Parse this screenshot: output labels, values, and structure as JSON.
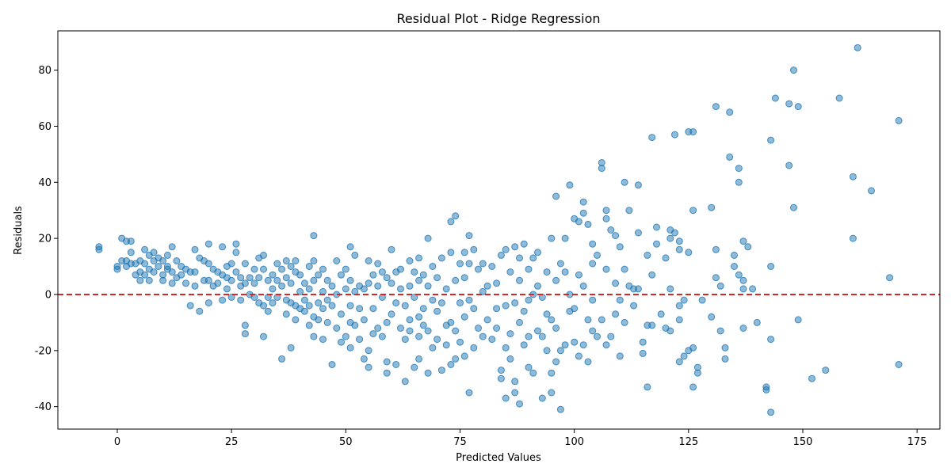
{
  "chart_data": {
    "type": "scatter",
    "title": "Residual Plot - Ridge Regression",
    "xlabel": "Predicted Values",
    "ylabel": "Residuals",
    "xlim": [
      -13,
      180
    ],
    "ylim": [
      -48,
      94
    ],
    "xticks": [
      0,
      25,
      50,
      75,
      100,
      125,
      150,
      175
    ],
    "yticks": [
      -40,
      -20,
      0,
      20,
      40,
      60,
      80
    ],
    "grid": false,
    "point_color": "#1f77b4",
    "point_alpha": 0.5,
    "reference_line": {
      "y": 0,
      "color": "#d62728",
      "style": "dashed"
    },
    "points": [
      [
        -4,
        17
      ],
      [
        -4,
        16
      ],
      [
        0,
        10
      ],
      [
        0,
        9
      ],
      [
        1,
        20
      ],
      [
        1,
        12
      ],
      [
        2,
        19
      ],
      [
        2,
        12
      ],
      [
        2,
        10
      ],
      [
        3,
        19
      ],
      [
        3,
        15
      ],
      [
        3,
        11
      ],
      [
        4,
        11
      ],
      [
        4,
        7
      ],
      [
        5,
        12
      ],
      [
        5,
        8
      ],
      [
        5,
        5
      ],
      [
        6,
        16
      ],
      [
        6,
        11
      ],
      [
        6,
        7
      ],
      [
        7,
        14
      ],
      [
        7,
        9
      ],
      [
        7,
        5
      ],
      [
        8,
        15
      ],
      [
        8,
        12
      ],
      [
        8,
        8
      ],
      [
        9,
        13
      ],
      [
        9,
        10
      ],
      [
        10,
        12
      ],
      [
        10,
        7
      ],
      [
        10,
        5
      ],
      [
        11,
        14
      ],
      [
        11,
        10
      ],
      [
        11,
        9
      ],
      [
        12,
        17
      ],
      [
        12,
        8
      ],
      [
        12,
        4
      ],
      [
        13,
        12
      ],
      [
        13,
        6
      ],
      [
        14,
        10
      ],
      [
        14,
        7
      ],
      [
        15,
        9
      ],
      [
        15,
        4
      ],
      [
        16,
        8
      ],
      [
        16,
        -4
      ],
      [
        17,
        16
      ],
      [
        17,
        8
      ],
      [
        17,
        3
      ],
      [
        18,
        13
      ],
      [
        18,
        -6
      ],
      [
        19,
        12
      ],
      [
        19,
        5
      ],
      [
        20,
        18
      ],
      [
        20,
        11
      ],
      [
        20,
        5
      ],
      [
        20,
        -3
      ],
      [
        21,
        9
      ],
      [
        21,
        3
      ],
      [
        22,
        8
      ],
      [
        22,
        4
      ],
      [
        23,
        17
      ],
      [
        23,
        7
      ],
      [
        23,
        -2
      ],
      [
        24,
        10
      ],
      [
        24,
        6
      ],
      [
        24,
        2
      ],
      [
        25,
        11
      ],
      [
        25,
        5
      ],
      [
        25,
        -1
      ],
      [
        26,
        18
      ],
      [
        26,
        15
      ],
      [
        26,
        8
      ],
      [
        27,
        6
      ],
      [
        27,
        3
      ],
      [
        27,
        -2
      ],
      [
        28,
        11
      ],
      [
        28,
        4
      ],
      [
        28,
        -11
      ],
      [
        28,
        -14
      ],
      [
        29,
        6
      ],
      [
        29,
        0
      ],
      [
        30,
        9
      ],
      [
        30,
        4
      ],
      [
        30,
        -1
      ],
      [
        31,
        13
      ],
      [
        31,
        6
      ],
      [
        31,
        -3
      ],
      [
        32,
        14
      ],
      [
        32,
        9
      ],
      [
        32,
        -4
      ],
      [
        32,
        -15
      ],
      [
        33,
        5
      ],
      [
        33,
        -1
      ],
      [
        33,
        -6
      ],
      [
        34,
        7
      ],
      [
        34,
        2
      ],
      [
        34,
        -3
      ],
      [
        35,
        11
      ],
      [
        35,
        5
      ],
      [
        35,
        -1
      ],
      [
        36,
        9
      ],
      [
        36,
        3
      ],
      [
        36,
        -23
      ],
      [
        37,
        12
      ],
      [
        37,
        6
      ],
      [
        37,
        -2
      ],
      [
        37,
        -7
      ],
      [
        38,
        10
      ],
      [
        38,
        4
      ],
      [
        38,
        -3
      ],
      [
        38,
        -19
      ],
      [
        39,
        12
      ],
      [
        39,
        8
      ],
      [
        39,
        -4
      ],
      [
        39,
        -9
      ],
      [
        40,
        7
      ],
      [
        40,
        1
      ],
      [
        40,
        -5
      ],
      [
        41,
        4
      ],
      [
        41,
        -2
      ],
      [
        41,
        -6
      ],
      [
        42,
        10
      ],
      [
        42,
        2
      ],
      [
        42,
        -4
      ],
      [
        42,
        -11
      ],
      [
        43,
        21
      ],
      [
        43,
        12
      ],
      [
        43,
        5
      ],
      [
        43,
        -8
      ],
      [
        43,
        -15
      ],
      [
        44,
        7
      ],
      [
        44,
        -3
      ],
      [
        44,
        -9
      ],
      [
        45,
        9
      ],
      [
        45,
        1
      ],
      [
        45,
        -5
      ],
      [
        45,
        -16
      ],
      [
        46,
        5
      ],
      [
        46,
        -2
      ],
      [
        46,
        -10
      ],
      [
        47,
        3
      ],
      [
        47,
        -4
      ],
      [
        47,
        -25
      ],
      [
        48,
        12
      ],
      [
        48,
        0
      ],
      [
        48,
        -12
      ],
      [
        49,
        7
      ],
      [
        49,
        -7
      ],
      [
        49,
        -17
      ],
      [
        50,
        9
      ],
      [
        50,
        2
      ],
      [
        50,
        -15
      ],
      [
        51,
        17
      ],
      [
        51,
        5
      ],
      [
        51,
        -4
      ],
      [
        51,
        -10
      ],
      [
        51,
        -19
      ],
      [
        52,
        14
      ],
      [
        52,
        1
      ],
      [
        52,
        -11
      ],
      [
        53,
        3
      ],
      [
        53,
        -5
      ],
      [
        53,
        -16
      ],
      [
        54,
        2
      ],
      [
        54,
        -9
      ],
      [
        54,
        -23
      ],
      [
        55,
        12
      ],
      [
        55,
        4
      ],
      [
        55,
        -20
      ],
      [
        55,
        -26
      ],
      [
        56,
        7
      ],
      [
        56,
        -5
      ],
      [
        56,
        -14
      ],
      [
        57,
        11
      ],
      [
        57,
        3
      ],
      [
        57,
        -12
      ],
      [
        58,
        8
      ],
      [
        58,
        -1
      ],
      [
        58,
        -15
      ],
      [
        59,
        6
      ],
      [
        59,
        -10
      ],
      [
        59,
        -24
      ],
      [
        59,
        -28
      ],
      [
        60,
        16
      ],
      [
        60,
        4
      ],
      [
        60,
        -7
      ],
      [
        61,
        8
      ],
      [
        61,
        -3
      ],
      [
        61,
        -25
      ],
      [
        62,
        9
      ],
      [
        62,
        2
      ],
      [
        62,
        -12
      ],
      [
        63,
        -4
      ],
      [
        63,
        -16
      ],
      [
        63,
        -31
      ],
      [
        64,
        12
      ],
      [
        64,
        3
      ],
      [
        64,
        -9
      ],
      [
        64,
        -13
      ],
      [
        65,
        8
      ],
      [
        65,
        -1
      ],
      [
        65,
        -26
      ],
      [
        66,
        13
      ],
      [
        66,
        5
      ],
      [
        66,
        -8
      ],
      [
        66,
        -15
      ],
      [
        66,
        -23
      ],
      [
        67,
        7
      ],
      [
        67,
        -5
      ],
      [
        67,
        -11
      ],
      [
        68,
        20
      ],
      [
        68,
        3
      ],
      [
        68,
        -13
      ],
      [
        68,
        -28
      ],
      [
        69,
        10
      ],
      [
        69,
        -2
      ],
      [
        69,
        -19
      ],
      [
        70,
        6
      ],
      [
        70,
        -6
      ],
      [
        70,
        -16
      ],
      [
        71,
        13
      ],
      [
        71,
        -3
      ],
      [
        71,
        -27
      ],
      [
        72,
        2
      ],
      [
        72,
        -11
      ],
      [
        72,
        -18
      ],
      [
        73,
        26
      ],
      [
        73,
        15
      ],
      [
        73,
        -10
      ],
      [
        73,
        -25
      ],
      [
        74,
        28
      ],
      [
        74,
        5
      ],
      [
        74,
        -13
      ],
      [
        74,
        -23
      ],
      [
        75,
        11
      ],
      [
        75,
        -3
      ],
      [
        75,
        -17
      ],
      [
        76,
        15
      ],
      [
        76,
        6
      ],
      [
        76,
        -8
      ],
      [
        76,
        -22
      ],
      [
        77,
        21
      ],
      [
        77,
        11
      ],
      [
        77,
        -2
      ],
      [
        77,
        -35
      ],
      [
        78,
        16
      ],
      [
        78,
        -5
      ],
      [
        78,
        -19
      ],
      [
        79,
        9
      ],
      [
        79,
        -12
      ],
      [
        80,
        11
      ],
      [
        80,
        1
      ],
      [
        80,
        -15
      ],
      [
        81,
        3
      ],
      [
        81,
        -9
      ],
      [
        82,
        10
      ],
      [
        82,
        -16
      ],
      [
        83,
        4
      ],
      [
        83,
        -5
      ],
      [
        83,
        -12
      ],
      [
        84,
        14
      ],
      [
        84,
        -27
      ],
      [
        84,
        -30
      ],
      [
        85,
        16
      ],
      [
        85,
        -4
      ],
      [
        85,
        -19
      ],
      [
        85,
        -37
      ],
      [
        86,
        8
      ],
      [
        86,
        -14
      ],
      [
        86,
        -23
      ],
      [
        87,
        17
      ],
      [
        87,
        -3
      ],
      [
        87,
        -31
      ],
      [
        87,
        -35
      ],
      [
        88,
        13
      ],
      [
        88,
        5
      ],
      [
        88,
        -10
      ],
      [
        88,
        -39
      ],
      [
        89,
        18
      ],
      [
        89,
        -6
      ],
      [
        89,
        -18
      ],
      [
        90,
        9
      ],
      [
        90,
        -2
      ],
      [
        90,
        -15
      ],
      [
        90,
        -26
      ],
      [
        91,
        13
      ],
      [
        91,
        0
      ],
      [
        91,
        -28
      ],
      [
        92,
        15
      ],
      [
        92,
        3
      ],
      [
        92,
        -13
      ],
      [
        93,
        -1
      ],
      [
        93,
        -37
      ],
      [
        93,
        -15
      ],
      [
        94,
        8
      ],
      [
        94,
        -7
      ],
      [
        94,
        -20
      ],
      [
        95,
        20
      ],
      [
        95,
        -9
      ],
      [
        95,
        -28
      ],
      [
        95,
        -35
      ],
      [
        96,
        35
      ],
      [
        96,
        5
      ],
      [
        96,
        -12
      ],
      [
        96,
        -24
      ],
      [
        97,
        11
      ],
      [
        97,
        -41
      ],
      [
        97,
        -20
      ],
      [
        98,
        20
      ],
      [
        98,
        8
      ],
      [
        98,
        -18
      ],
      [
        99,
        39
      ],
      [
        99,
        0
      ],
      [
        99,
        -6
      ],
      [
        100,
        27
      ],
      [
        100,
        -5
      ],
      [
        100,
        -17
      ],
      [
        101,
        26
      ],
      [
        101,
        7
      ],
      [
        101,
        -22
      ],
      [
        102,
        33
      ],
      [
        102,
        29
      ],
      [
        102,
        3
      ],
      [
        102,
        -18
      ],
      [
        103,
        25
      ],
      [
        103,
        -9
      ],
      [
        103,
        -24
      ],
      [
        104,
        18
      ],
      [
        104,
        11
      ],
      [
        104,
        -2
      ],
      [
        104,
        -13
      ],
      [
        105,
        14
      ],
      [
        105,
        -15
      ],
      [
        106,
        45
      ],
      [
        106,
        47
      ],
      [
        106,
        -9
      ],
      [
        107,
        30
      ],
      [
        107,
        27
      ],
      [
        107,
        9
      ],
      [
        107,
        -18
      ],
      [
        108,
        23
      ],
      [
        108,
        -15
      ],
      [
        109,
        21
      ],
      [
        109,
        4
      ],
      [
        109,
        -7
      ],
      [
        110,
        17
      ],
      [
        110,
        -2
      ],
      [
        110,
        -22
      ],
      [
        111,
        40
      ],
      [
        111,
        9
      ],
      [
        111,
        -10
      ],
      [
        112,
        30
      ],
      [
        112,
        3
      ],
      [
        113,
        2
      ],
      [
        113,
        -4
      ],
      [
        114,
        39
      ],
      [
        114,
        22
      ],
      [
        114,
        2
      ],
      [
        115,
        -17
      ],
      [
        115,
        -21
      ],
      [
        116,
        14
      ],
      [
        116,
        -11
      ],
      [
        116,
        -33
      ],
      [
        117,
        56
      ],
      [
        117,
        7
      ],
      [
        117,
        -11
      ],
      [
        118,
        24
      ],
      [
        118,
        18
      ],
      [
        119,
        -7
      ],
      [
        120,
        13
      ],
      [
        120,
        -12
      ],
      [
        121,
        23
      ],
      [
        121,
        20
      ],
      [
        121,
        2
      ],
      [
        121,
        -13
      ],
      [
        122,
        57
      ],
      [
        122,
        22
      ],
      [
        123,
        19
      ],
      [
        123,
        16
      ],
      [
        123,
        -4
      ],
      [
        123,
        -9
      ],
      [
        123,
        -24
      ],
      [
        124,
        -2
      ],
      [
        124,
        -22
      ],
      [
        125,
        58
      ],
      [
        125,
        15
      ],
      [
        125,
        -20
      ],
      [
        126,
        58
      ],
      [
        126,
        30
      ],
      [
        126,
        -19
      ],
      [
        126,
        -33
      ],
      [
        127,
        -26
      ],
      [
        127,
        -28
      ],
      [
        128,
        -2
      ],
      [
        130,
        31
      ],
      [
        130,
        -8
      ],
      [
        131,
        67
      ],
      [
        131,
        16
      ],
      [
        131,
        6
      ],
      [
        132,
        3
      ],
      [
        132,
        -13
      ],
      [
        133,
        -19
      ],
      [
        133,
        -23
      ],
      [
        134,
        49
      ],
      [
        134,
        65
      ],
      [
        135,
        14
      ],
      [
        135,
        10
      ],
      [
        136,
        45
      ],
      [
        136,
        40
      ],
      [
        136,
        7
      ],
      [
        137,
        5
      ],
      [
        137,
        2
      ],
      [
        137,
        19
      ],
      [
        137,
        -12
      ],
      [
        138,
        17
      ],
      [
        139,
        2
      ],
      [
        140,
        -10
      ],
      [
        142,
        -34
      ],
      [
        142,
        -33
      ],
      [
        143,
        55
      ],
      [
        143,
        10
      ],
      [
        143,
        -16
      ],
      [
        143,
        -42
      ],
      [
        144,
        70
      ],
      [
        147,
        68
      ],
      [
        147,
        46
      ],
      [
        148,
        80
      ],
      [
        148,
        31
      ],
      [
        149,
        -9
      ],
      [
        149,
        67
      ],
      [
        152,
        -30
      ],
      [
        155,
        -27
      ],
      [
        158,
        70
      ],
      [
        161,
        42
      ],
      [
        161,
        20
      ],
      [
        162,
        88
      ],
      [
        165,
        37
      ],
      [
        169,
        6
      ],
      [
        171,
        62
      ],
      [
        171,
        -25
      ]
    ]
  }
}
